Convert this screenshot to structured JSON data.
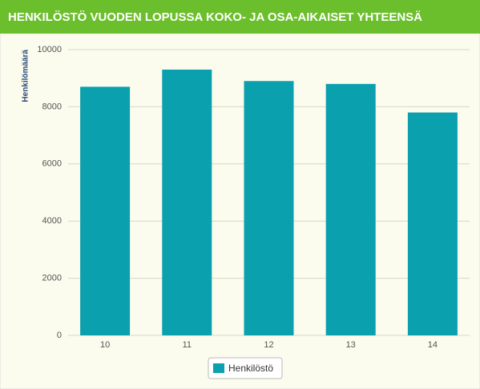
{
  "chart_data": {
    "type": "bar",
    "title": "HENKILÖSTÖ VUODEN LOPUSSA KOKO- JA OSA-AIKAISET YHTEENSÄ",
    "y_label": "Henkilömäärä",
    "categories": [
      "10",
      "11",
      "12",
      "13",
      "14"
    ],
    "series": [
      {
        "name": "Henkilöstö",
        "color": "#0aa0ae",
        "values": [
          8700,
          9300,
          8900,
          8800,
          7800
        ]
      }
    ],
    "ylim": [
      0,
      10000
    ],
    "yticks": [
      0,
      2000,
      4000,
      6000,
      8000,
      10000
    ],
    "grid": true,
    "legend": "bottom"
  }
}
